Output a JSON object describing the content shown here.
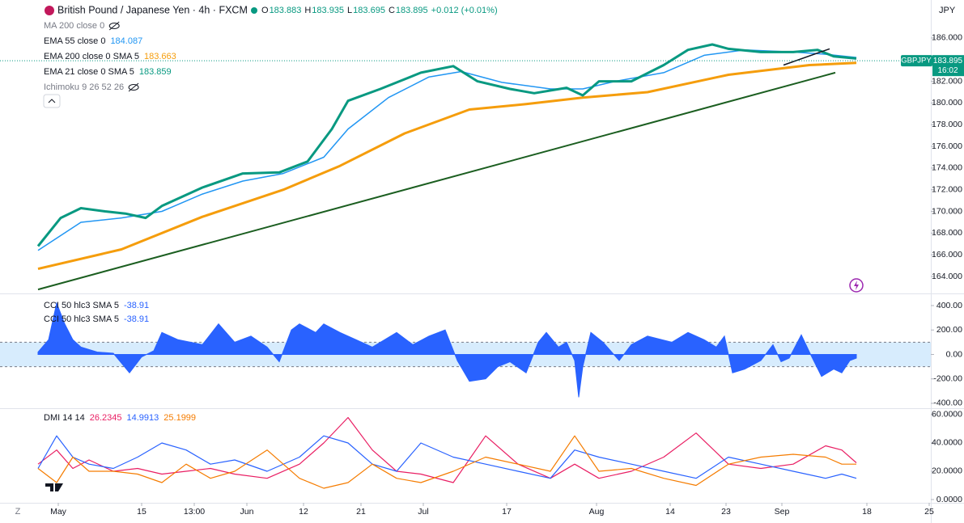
{
  "header": {
    "symbol": "British Pound / Japanese Yen · 4h · FXCM",
    "ohlc": [
      {
        "key": "O",
        "value": "183.883"
      },
      {
        "key": "H",
        "value": "183.935"
      },
      {
        "key": "L",
        "value": "183.695"
      },
      {
        "key": "C",
        "value": "183.895"
      }
    ],
    "change": "+0.012 (+0.01%)",
    "currency": "JPY"
  },
  "legend": [
    {
      "name": "MA 200 close 0"
    },
    {
      "name": "EMA 55 close 0",
      "value": "184.087",
      "color": "#2196f3"
    },
    {
      "name": "EMA 200 close 0 SMA 5",
      "value": "183.663",
      "color": "#f59d0c"
    },
    {
      "name": "EMA 21 close 0 SMA 5",
      "value": "183.859",
      "color": "#089981"
    },
    {
      "name": "Ichimoku 9 26 52 26"
    }
  ],
  "last_price": {
    "symbol": "GBPJPY",
    "value": 183.895,
    "label": "183.895",
    "countdown": "16:02"
  },
  "scale_button": "Z",
  "chart_data": [
    {
      "type": "line",
      "xlim": [
        -7.2,
        107.8
      ],
      "ylim": [
        162.51,
        189.5
      ],
      "yticks": [
        {
          "value": 164,
          "label": "164.000"
        },
        {
          "value": 166,
          "label": "166.000"
        },
        {
          "value": 168,
          "label": "168.000"
        },
        {
          "value": 170,
          "label": "170.000"
        },
        {
          "value": 172,
          "label": "172.000"
        },
        {
          "value": 174,
          "label": "174.000"
        },
        {
          "value": 176,
          "label": "176.000"
        },
        {
          "value": 178,
          "label": "178.000"
        },
        {
          "value": 180,
          "label": "180.000"
        },
        {
          "value": 182,
          "label": "182.000"
        },
        {
          "value": 184,
          "label": "184.000"
        },
        {
          "value": 186,
          "label": "186.000"
        }
      ],
      "grid": false,
      "series": [
        {
          "name": "EMA 200",
          "color": "#f59d0c",
          "width": 3,
          "x": [
            -2.5,
            7.8,
            17.8,
            27.8,
            34.8,
            42.8,
            50.8,
            57.8,
            64.8,
            72.8,
            82.8,
            92.8,
            98.6
          ],
          "values": [
            164.7,
            166.5,
            169.5,
            172,
            174.2,
            177.2,
            179.4,
            179.9,
            180.5,
            181,
            182.6,
            183.5,
            183.7
          ]
        },
        {
          "name": "EMA 55",
          "color": "#2196f3",
          "width": 1.5,
          "x": [
            -2.5,
            2.8,
            7.8,
            12.8,
            17.8,
            22.8,
            27.8,
            32.8,
            35.8,
            40.8,
            45.8,
            49.8,
            54.8,
            60.8,
            64.8,
            68.8,
            74.8,
            79.8,
            84.8,
            90.8,
            94.8,
            98.6
          ],
          "values": [
            166.4,
            169,
            169.4,
            170,
            171.6,
            172.8,
            173.5,
            175,
            177.6,
            180.5,
            182.4,
            182.9,
            181.9,
            181.3,
            181.3,
            182,
            182.8,
            184.4,
            184.9,
            184.7,
            184.5,
            184.2
          ]
        },
        {
          "name": "EMA 21",
          "color": "#089981",
          "width": 3,
          "x": [
            -2.5,
            0.3,
            2.8,
            5.8,
            8.3,
            10.8,
            12.8,
            17.8,
            22.8,
            27.3,
            30.8,
            33.8,
            35.8,
            39.8,
            44.8,
            48.8,
            51.8,
            55.8,
            58.8,
            62.8,
            64.8,
            66.8,
            70.8,
            74.8,
            77.8,
            80.8,
            82.8,
            86.8,
            90.8,
            93.8,
            95.8,
            98.6
          ],
          "values": [
            166.8,
            169.4,
            170.3,
            170,
            169.8,
            169.4,
            170.5,
            172.2,
            173.5,
            173.6,
            174.6,
            177.6,
            180.2,
            181.3,
            182.8,
            183.4,
            182,
            181.3,
            180.9,
            181.4,
            180.7,
            182,
            182,
            183.5,
            184.9,
            185.4,
            185,
            184.7,
            184.7,
            184.9,
            184.3,
            184.1
          ]
        },
        {
          "name": "Trend",
          "color": "#1b5e20",
          "width": 2,
          "x": [
            -2.5,
            96.0
          ],
          "values": [
            162.8,
            182.8
          ]
        },
        {
          "name": "Trend 2",
          "color": "#131722",
          "width": 1.5,
          "x": [
            89.6,
            95.3
          ],
          "values": [
            183.5,
            185
          ]
        }
      ]
    },
    {
      "type": "area",
      "xlim": [
        -7.2,
        107.8
      ],
      "ylim": [
        -440,
        486
      ],
      "yticks": [
        {
          "value": 400,
          "label": "400.00"
        },
        {
          "value": 200,
          "label": "200.00"
        },
        {
          "value": 0,
          "label": "0.00"
        },
        {
          "value": -200,
          "label": "-200.00"
        },
        {
          "value": -400,
          "label": "-400.00"
        }
      ],
      "band": [
        -100,
        100
      ],
      "legend": [
        {
          "name": "CCI 50 hlc3 SMA 5",
          "value": "-38.91"
        },
        {
          "name": "CCI 50 hlc3 SMA 5",
          "value": "-38.91"
        }
      ],
      "series": [
        {
          "name": "CCI",
          "color": "#2962ff",
          "x": [
            -2.5,
            -1.2,
            -0.2,
            0.8,
            1.8,
            2.8,
            4.8,
            6.8,
            8.8,
            10.3,
            11.8,
            12.8,
            14.8,
            17.8,
            19.8,
            21.8,
            23.8,
            25.8,
            27.3,
            28.8,
            29.8,
            31.8,
            32.8,
            34.8,
            36.8,
            38.8,
            41.8,
            43.8,
            45.8,
            47.8,
            49.3,
            50.8,
            52.8,
            54.3,
            55.8,
            57.8,
            59.3,
            60.3,
            61.8,
            62.8,
            63.8,
            64.3,
            64.8,
            65.8,
            67.3,
            69.3,
            70.8,
            72.8,
            75.8,
            77.8,
            79.8,
            81.3,
            82.3,
            83.3,
            84.8,
            86.8,
            88.3,
            89.3,
            90.3,
            91.8,
            92.8,
            94.3,
            95.8,
            96.8,
            97.8,
            98.6
          ],
          "values": [
            20,
            120,
            420,
            250,
            120,
            60,
            20,
            10,
            -150,
            -20,
            30,
            180,
            120,
            80,
            250,
            100,
            150,
            60,
            -60,
            200,
            250,
            180,
            250,
            180,
            120,
            60,
            180,
            80,
            150,
            200,
            -50,
            -220,
            -200,
            -100,
            -60,
            -150,
            100,
            180,
            60,
            100,
            -50,
            -350,
            -100,
            180,
            100,
            -50,
            80,
            150,
            100,
            180,
            120,
            60,
            150,
            -150,
            -120,
            -50,
            80,
            -60,
            -30,
            160,
            20,
            -180,
            -120,
            -150,
            -50,
            -30
          ]
        }
      ]
    },
    {
      "type": "line",
      "xlim": [
        -7.2,
        107.8
      ],
      "ylim": [
        -2.3,
        63.4
      ],
      "yticks": [
        {
          "value": 60,
          "label": "60.0000"
        },
        {
          "value": 40,
          "label": "40.0000"
        },
        {
          "value": 20,
          "label": "20.0000"
        },
        {
          "value": 0,
          "label": "0.0000"
        }
      ],
      "title": "DMI 14 14",
      "xticks": [
        {
          "value": 0,
          "label": "May"
        },
        {
          "value": 10.3,
          "label": "15"
        },
        {
          "value": 16.8,
          "label": "13:00"
        },
        {
          "value": 23.3,
          "label": "Jun"
        },
        {
          "value": 30.3,
          "label": "12"
        },
        {
          "value": 37.4,
          "label": "21"
        },
        {
          "value": 45.1,
          "label": "Jul"
        },
        {
          "value": 55.4,
          "label": "17"
        },
        {
          "value": 66.5,
          "label": "Aug"
        },
        {
          "value": 75.6,
          "label": "14"
        },
        {
          "value": 82.5,
          "label": "23"
        },
        {
          "value": 89.4,
          "label": "Sep"
        },
        {
          "value": 99.9,
          "label": "18"
        },
        {
          "value": 107.6,
          "label": "25"
        }
      ],
      "x": [
        -2.5,
        -0.2,
        1.8,
        3.8,
        6.8,
        9.8,
        12.8,
        15.8,
        18.8,
        21.8,
        25.8,
        29.8,
        32.8,
        35.8,
        38.8,
        41.8,
        44.8,
        48.8,
        52.8,
        56.8,
        60.8,
        63.8,
        66.8,
        70.8,
        74.8,
        78.8,
        82.8,
        86.8,
        90.8,
        94.8,
        96.8,
        98.6
      ],
      "series": [
        {
          "name": "26.2345",
          "color": "#e91e63",
          "values": [
            25,
            35,
            22,
            28,
            20,
            22,
            18,
            20,
            22,
            18,
            15,
            25,
            40,
            58,
            35,
            20,
            18,
            12,
            45,
            25,
            15,
            25,
            15,
            20,
            30,
            47,
            25,
            22,
            25,
            38,
            35,
            26
          ]
        },
        {
          "name": "14.9913",
          "color": "#2962ff",
          "values": [
            22,
            45,
            30,
            25,
            22,
            30,
            40,
            35,
            25,
            28,
            20,
            30,
            45,
            40,
            25,
            20,
            40,
            30,
            25,
            20,
            15,
            35,
            30,
            25,
            20,
            15,
            30,
            25,
            20,
            15,
            18,
            15
          ]
        },
        {
          "name": "25.1999",
          "color": "#f57c00",
          "values": [
            22,
            12,
            30,
            20,
            20,
            18,
            12,
            25,
            15,
            20,
            35,
            15,
            8,
            12,
            25,
            15,
            12,
            20,
            30,
            25,
            20,
            45,
            20,
            22,
            15,
            10,
            25,
            30,
            32,
            30,
            25,
            25
          ]
        }
      ]
    }
  ]
}
